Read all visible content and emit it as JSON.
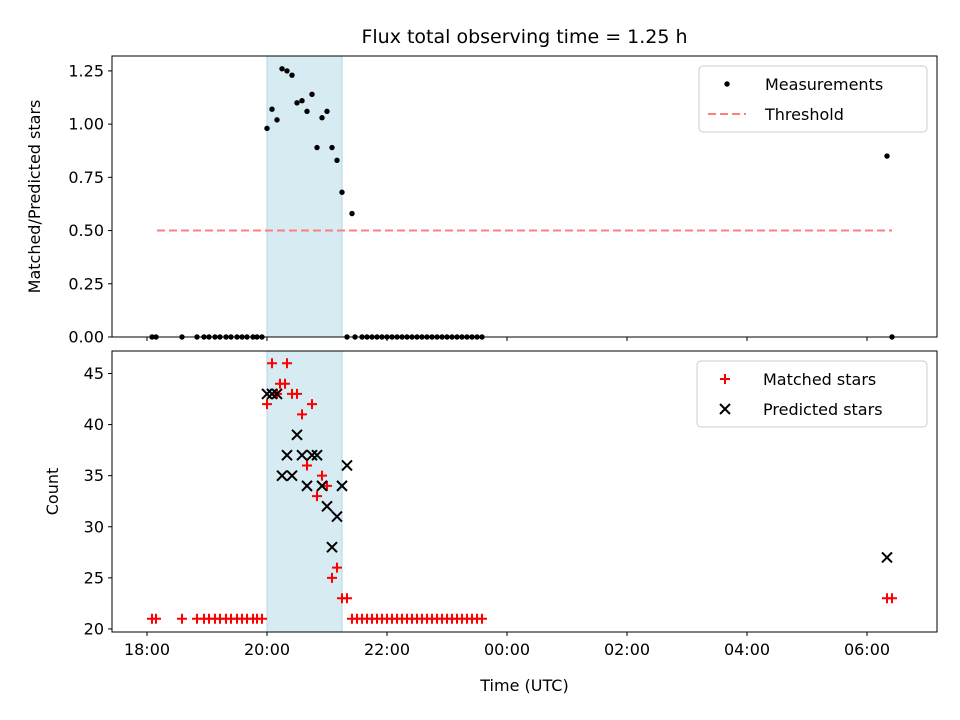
{
  "chart_data": [
    {
      "type": "scatter",
      "title": "Flux total observing time = 1.25 h",
      "xlabel": "",
      "ylabel": "Matched/Predicted stars",
      "xlim": [
        "17:25",
        "07:10"
      ],
      "ylim": [
        0,
        1.32
      ],
      "x_ticks": [
        "18:00",
        "20:00",
        "22:00",
        "00:00",
        "02:00",
        "04:00",
        "06:00"
      ],
      "y_ticks": [
        "0.00",
        "0.25",
        "0.50",
        "0.75",
        "1.00",
        "1.25"
      ],
      "grid": false,
      "legend_position": "top-right",
      "shaded_interval": [
        "20:00",
        "21:15"
      ],
      "series": [
        {
          "name": "Measurements",
          "marker": "dot",
          "color": "#000000",
          "points": [
            [
              "18:05",
              0
            ],
            [
              "18:09",
              0
            ],
            [
              "18:35",
              0
            ],
            [
              "18:50",
              0
            ],
            [
              "18:57",
              0
            ],
            [
              "19:02",
              0
            ],
            [
              "19:08",
              0
            ],
            [
              "19:13",
              0
            ],
            [
              "19:19",
              0
            ],
            [
              "19:24",
              0
            ],
            [
              "19:30",
              0
            ],
            [
              "19:35",
              0
            ],
            [
              "19:40",
              0
            ],
            [
              "19:46",
              0
            ],
            [
              "19:50",
              0
            ],
            [
              "19:55",
              0
            ],
            [
              "20:00",
              0.98
            ],
            [
              "20:05",
              1.07
            ],
            [
              "20:10",
              1.02
            ],
            [
              "20:15",
              1.26
            ],
            [
              "20:20",
              1.25
            ],
            [
              "20:25",
              1.23
            ],
            [
              "20:30",
              1.1
            ],
            [
              "20:35",
              1.11
            ],
            [
              "20:40",
              1.06
            ],
            [
              "20:45",
              1.14
            ],
            [
              "20:50",
              0.89
            ],
            [
              "20:55",
              1.03
            ],
            [
              "21:00",
              1.06
            ],
            [
              "21:05",
              0.89
            ],
            [
              "21:10",
              0.83
            ],
            [
              "21:15",
              0.68
            ],
            [
              "21:25",
              0.58
            ],
            [
              "21:20",
              0
            ],
            [
              "21:28",
              0
            ],
            [
              "21:35",
              0
            ],
            [
              "21:40",
              0
            ],
            [
              "21:45",
              0
            ],
            [
              "21:50",
              0
            ],
            [
              "21:55",
              0
            ],
            [
              "22:00",
              0
            ],
            [
              "22:05",
              0
            ],
            [
              "22:10",
              0
            ],
            [
              "22:15",
              0
            ],
            [
              "22:20",
              0
            ],
            [
              "22:25",
              0
            ],
            [
              "22:30",
              0
            ],
            [
              "22:35",
              0
            ],
            [
              "22:40",
              0
            ],
            [
              "22:45",
              0
            ],
            [
              "22:50",
              0
            ],
            [
              "22:55",
              0
            ],
            [
              "23:00",
              0
            ],
            [
              "23:05",
              0
            ],
            [
              "23:10",
              0
            ],
            [
              "23:15",
              0
            ],
            [
              "23:20",
              0
            ],
            [
              "23:25",
              0
            ],
            [
              "23:30",
              0
            ],
            [
              "23:35",
              0
            ],
            [
              "06:20",
              0.85
            ],
            [
              "06:25",
              0
            ]
          ]
        },
        {
          "name": "Threshold",
          "style": "dashed-line",
          "color": "#ff7f7f",
          "points": [
            [
              "18:10",
              0.5
            ],
            [
              "06:25",
              0.5
            ]
          ]
        }
      ]
    },
    {
      "type": "scatter",
      "title": "",
      "xlabel": "Time (UTC)",
      "ylabel": "Count",
      "xlim": [
        "17:25",
        "07:10"
      ],
      "ylim": [
        19.7,
        47.2
      ],
      "x_ticks": [
        "18:00",
        "20:00",
        "22:00",
        "00:00",
        "02:00",
        "04:00",
        "06:00"
      ],
      "y_ticks": [
        "20",
        "25",
        "30",
        "35",
        "40",
        "45"
      ],
      "grid": false,
      "legend_position": "top-right",
      "shaded_interval": [
        "20:00",
        "21:15"
      ],
      "series": [
        {
          "name": "Matched stars",
          "marker": "plus",
          "color": "#ff0000",
          "points": [
            [
              "18:05",
              21
            ],
            [
              "18:09",
              21
            ],
            [
              "18:35",
              21
            ],
            [
              "18:50",
              21
            ],
            [
              "18:57",
              21
            ],
            [
              "19:02",
              21
            ],
            [
              "19:08",
              21
            ],
            [
              "19:13",
              21
            ],
            [
              "19:19",
              21
            ],
            [
              "19:24",
              21
            ],
            [
              "19:30",
              21
            ],
            [
              "19:35",
              21
            ],
            [
              "19:40",
              21
            ],
            [
              "19:46",
              21
            ],
            [
              "19:50",
              21
            ],
            [
              "19:55",
              21
            ],
            [
              "20:00",
              42
            ],
            [
              "20:05",
              46
            ],
            [
              "20:10",
              43
            ],
            [
              "20:13",
              44
            ],
            [
              "20:18",
              44
            ],
            [
              "20:20",
              46
            ],
            [
              "20:25",
              43
            ],
            [
              "20:30",
              43
            ],
            [
              "20:35",
              41
            ],
            [
              "20:40",
              36
            ],
            [
              "20:45",
              42
            ],
            [
              "20:50",
              33
            ],
            [
              "20:55",
              35
            ],
            [
              "21:00",
              34
            ],
            [
              "21:05",
              25
            ],
            [
              "21:10",
              26
            ],
            [
              "21:15",
              23
            ],
            [
              "21:20",
              23
            ],
            [
              "21:25",
              21
            ],
            [
              "21:30",
              21
            ],
            [
              "21:35",
              21
            ],
            [
              "21:40",
              21
            ],
            [
              "21:45",
              21
            ],
            [
              "21:50",
              21
            ],
            [
              "21:55",
              21
            ],
            [
              "22:00",
              21
            ],
            [
              "22:05",
              21
            ],
            [
              "22:10",
              21
            ],
            [
              "22:15",
              21
            ],
            [
              "22:20",
              21
            ],
            [
              "22:25",
              21
            ],
            [
              "22:30",
              21
            ],
            [
              "22:35",
              21
            ],
            [
              "22:40",
              21
            ],
            [
              "22:45",
              21
            ],
            [
              "22:50",
              21
            ],
            [
              "22:55",
              21
            ],
            [
              "23:00",
              21
            ],
            [
              "23:05",
              21
            ],
            [
              "23:10",
              21
            ],
            [
              "23:15",
              21
            ],
            [
              "23:20",
              21
            ],
            [
              "23:25",
              21
            ],
            [
              "23:30",
              21
            ],
            [
              "23:35",
              21
            ],
            [
              "06:20",
              23
            ],
            [
              "06:25",
              23
            ]
          ]
        },
        {
          "name": "Predicted stars",
          "marker": "x",
          "color": "#000000",
          "points": [
            [
              "20:00",
              43
            ],
            [
              "20:05",
              43
            ],
            [
              "20:10",
              43
            ],
            [
              "20:15",
              35
            ],
            [
              "20:20",
              37
            ],
            [
              "20:25",
              35
            ],
            [
              "20:30",
              39
            ],
            [
              "20:35",
              37
            ],
            [
              "20:40",
              34
            ],
            [
              "20:45",
              37
            ],
            [
              "20:50",
              37
            ],
            [
              "20:55",
              34
            ],
            [
              "21:00",
              32
            ],
            [
              "21:05",
              28
            ],
            [
              "21:10",
              31
            ],
            [
              "21:15",
              34
            ],
            [
              "21:20",
              36
            ],
            [
              "06:20",
              27
            ]
          ]
        }
      ]
    }
  ]
}
